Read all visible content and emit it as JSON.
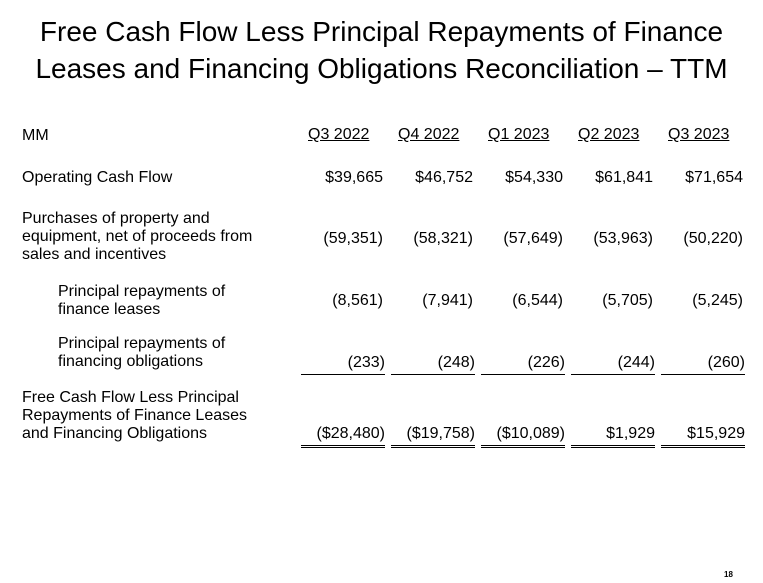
{
  "title": {
    "line1": "Free Cash Flow Less Principal Repayments of Finance",
    "line2": "Leases and Financing Obligations Reconciliation – TTM"
  },
  "table": {
    "unit_label": "MM",
    "columns": [
      "Q3 2022",
      "Q4 2022",
      "Q1 2023",
      "Q2 2023",
      "Q3 2023"
    ],
    "rows": [
      {
        "label_lines": [
          "Operating Cash Flow"
        ],
        "values": [
          "$39,665",
          "$46,752",
          "$54,330",
          "$61,841",
          "$71,654"
        ]
      },
      {
        "label_lines": [
          "Purchases of property and",
          "equipment, net of proceeds from",
          "sales and incentives"
        ],
        "values": [
          "(59,351)",
          "(58,321)",
          "(57,649)",
          "(53,963)",
          "(50,220)"
        ]
      },
      {
        "label_lines": [
          "Principal repayments of",
          "finance leases"
        ],
        "values": [
          "(8,561)",
          "(7,941)",
          "(6,544)",
          "(5,705)",
          "(5,245)"
        ]
      },
      {
        "label_lines": [
          "Principal repayments of",
          "financing obligations"
        ],
        "values": [
          "(233)",
          "(248)",
          "(226)",
          "(244)",
          "(260)"
        ]
      },
      {
        "label_lines": [
          "Free Cash Flow Less Principal",
          "Repayments of Finance Leases",
          "and Financing Obligations"
        ],
        "values": [
          "($28,480)",
          "($19,758)",
          "($10,089)",
          "$1,929",
          "$15,929"
        ]
      }
    ]
  },
  "page_number": "18"
}
